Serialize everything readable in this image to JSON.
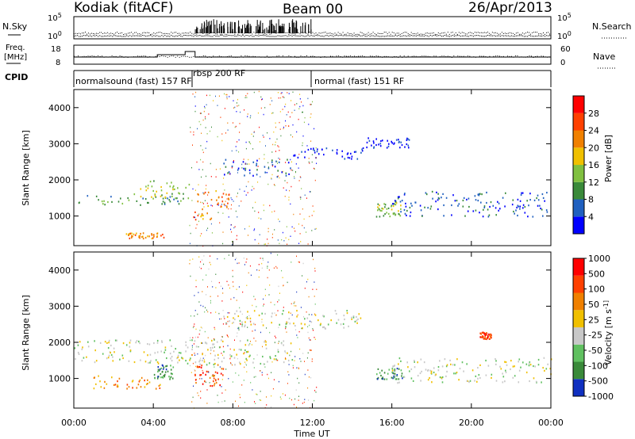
{
  "header": {
    "station": "Kodiak (fitACF)",
    "beam": "Beam 00",
    "date": "26/Apr/2013"
  },
  "top_panels": {
    "nsky": {
      "left_label": "N.Sky",
      "right_label": "N.Search",
      "left_ticks": [
        "10^5",
        "10^0"
      ],
      "right_ticks": [
        "10^5",
        "10^0"
      ]
    },
    "freq": {
      "left_label_1": "Freq.",
      "left_label_2": "[MHz]",
      "right_label": "Nave",
      "left_ticks": [
        "18",
        "8"
      ],
      "right_ticks": [
        "60",
        "0"
      ]
    },
    "cpid": {
      "label": "CPID",
      "segments": [
        "normalsound (fast) 157 RF",
        "rbsp 200 RF",
        "normal (fast) 151 RF"
      ]
    }
  },
  "chart_data": [
    {
      "type": "heatmap",
      "title": "",
      "xlabel": "Time UT",
      "ylabel": "Slant Range [km]",
      "xticks": [
        "00:00",
        "04:00",
        "08:00",
        "12:00",
        "16:00",
        "20:00",
        "00:00"
      ],
      "yticks": [
        "1000",
        "2000",
        "3000",
        "4000"
      ],
      "ylim": [
        180,
        4500
      ],
      "colorbar": {
        "label": "Power [dB]",
        "ticks": [
          "4",
          "8",
          "12",
          "16",
          "20",
          "24",
          "28"
        ],
        "colors": [
          "#0000ff",
          "#2060c0",
          "#3a8a3a",
          "#80c040",
          "#f0c000",
          "#f08000",
          "#ff4000",
          "#ff0000"
        ]
      },
      "bands": [
        {
          "t0": 0.2,
          "t1": 5.5,
          "r0": 1300,
          "r1": 1600,
          "level": 2
        },
        {
          "t0": 3.0,
          "t1": 5.8,
          "r0": 1500,
          "r1": 2000,
          "level": 3
        },
        {
          "t0": 6.0,
          "t1": 7.8,
          "r0": 900,
          "r1": 1800,
          "level": 5
        },
        {
          "t0": 7.5,
          "t1": 11.0,
          "r0": 2100,
          "r1": 2600,
          "level": 1
        },
        {
          "t0": 11.0,
          "t1": 14.5,
          "r0": 2600,
          "r1": 2900,
          "level": 0
        },
        {
          "t0": 14.5,
          "t1": 17.0,
          "r0": 2900,
          "r1": 3200,
          "level": 0
        },
        {
          "t0": 15.2,
          "t1": 16.5,
          "r0": 1000,
          "r1": 1400,
          "level": 3
        },
        {
          "t0": 16.0,
          "t1": 24.0,
          "r0": 1000,
          "r1": 1700,
          "level": 1
        },
        {
          "t0": 2.5,
          "t1": 4.5,
          "r0": 400,
          "r1": 550,
          "level": 5
        }
      ]
    },
    {
      "type": "heatmap",
      "title": "",
      "xlabel": "Time UT",
      "ylabel": "Slant Range [km]",
      "xticks": [
        "00:00",
        "04:00",
        "08:00",
        "12:00",
        "16:00",
        "20:00",
        "00:00"
      ],
      "yticks": [
        "1000",
        "2000",
        "3000",
        "4000"
      ],
      "ylim": [
        180,
        4500
      ],
      "colorbar": {
        "label": "Velocity [m s^-1]",
        "ticks": [
          "1000",
          "500",
          "100",
          "50",
          "25",
          "-25",
          "-50",
          "-100",
          "-500",
          "-1000"
        ],
        "colors": [
          "#1030c0",
          "#3a8a3a",
          "#60c060",
          "#c8c8c8",
          "#f0c000",
          "#f08000",
          "#ff4000",
          "#ff0000"
        ]
      },
      "bands": [
        {
          "t0": 0.0,
          "t1": 11.0,
          "r0": 1400,
          "r1": 2100,
          "level": 3
        },
        {
          "t0": 7.5,
          "t1": 14.5,
          "r0": 2400,
          "r1": 2900,
          "level": 3
        },
        {
          "t0": 6.0,
          "t1": 7.5,
          "r0": 800,
          "r1": 1400,
          "level": 6
        },
        {
          "t0": 4.0,
          "t1": 5.0,
          "r0": 1000,
          "r1": 1400,
          "level": 1
        },
        {
          "t0": 0.8,
          "t1": 4.5,
          "r0": 700,
          "r1": 1100,
          "level": 5
        },
        {
          "t0": 15.2,
          "t1": 16.5,
          "r0": 1000,
          "r1": 1300,
          "level": 1
        },
        {
          "t0": 16.0,
          "t1": 24.0,
          "r0": 900,
          "r1": 1600,
          "level": 3
        },
        {
          "t0": 20.4,
          "t1": 21.0,
          "r0": 2100,
          "r1": 2300,
          "level": 6
        }
      ]
    }
  ]
}
